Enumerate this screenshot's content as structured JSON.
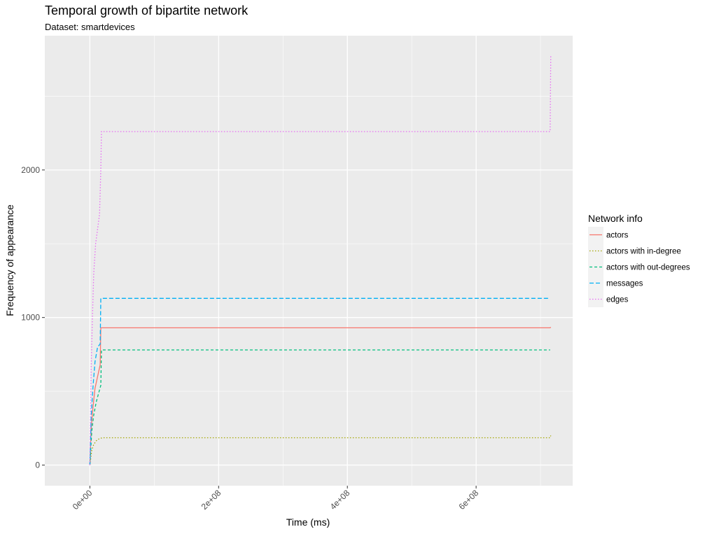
{
  "chart_data": {
    "type": "line",
    "title": "Temporal growth of bipartite network",
    "subtitle": "Dataset: smartdevices",
    "xlabel": "Time (ms)",
    "ylabel": "Frequency of appearance",
    "xlim": [
      -70000000,
      750000000
    ],
    "ylim": [
      -140,
      2910
    ],
    "x_ticks": [
      {
        "value": 0,
        "label": "0e+00"
      },
      {
        "value": 200000000,
        "label": "2e+08"
      },
      {
        "value": 400000000,
        "label": "4e+08"
      },
      {
        "value": 600000000,
        "label": "6e+08"
      }
    ],
    "y_ticks": [
      {
        "value": 0,
        "label": "0"
      },
      {
        "value": 1000,
        "label": "1000"
      },
      {
        "value": 2000,
        "label": "2000"
      }
    ],
    "grid": true,
    "legend": {
      "title": "Network info",
      "placement": "right"
    },
    "series": [
      {
        "name": "actors",
        "color": "#F8766D",
        "dash": "solid",
        "points": [
          [
            0,
            0
          ],
          [
            2000000,
            250
          ],
          [
            5000000,
            400
          ],
          [
            8000000,
            520
          ],
          [
            12000000,
            600
          ],
          [
            16000000,
            680
          ],
          [
            17000000,
            930
          ],
          [
            715000000,
            930
          ],
          [
            716000000,
            935
          ]
        ]
      },
      {
        "name": "actors with in-degree",
        "color": "#A3A500",
        "dash": "dotted",
        "points": [
          [
            0,
            0
          ],
          [
            3000000,
            100
          ],
          [
            6000000,
            140
          ],
          [
            10000000,
            165
          ],
          [
            15000000,
            180
          ],
          [
            20000000,
            185
          ],
          [
            715000000,
            185
          ],
          [
            716000000,
            200
          ]
        ]
      },
      {
        "name": "actors with out-degrees",
        "color": "#00BF7D",
        "dash": "dashed",
        "points": [
          [
            0,
            0
          ],
          [
            3000000,
            230
          ],
          [
            6000000,
            340
          ],
          [
            10000000,
            430
          ],
          [
            15000000,
            510
          ],
          [
            17000000,
            540
          ],
          [
            18000000,
            780
          ],
          [
            715000000,
            780
          ]
        ]
      },
      {
        "name": "messages",
        "color": "#00B0F6",
        "dash": "longdash",
        "points": [
          [
            0,
            0
          ],
          [
            2000000,
            330
          ],
          [
            5000000,
            540
          ],
          [
            8000000,
            700
          ],
          [
            12000000,
            800
          ],
          [
            16000000,
            820
          ],
          [
            17000000,
            1130
          ],
          [
            715000000,
            1130
          ]
        ]
      },
      {
        "name": "edges",
        "color": "#E76BF3",
        "dash": "dotted",
        "points": [
          [
            0,
            0
          ],
          [
            2000000,
            650
          ],
          [
            4000000,
            1000
          ],
          [
            6000000,
            1300
          ],
          [
            9000000,
            1500
          ],
          [
            12000000,
            1600
          ],
          [
            15000000,
            1700
          ],
          [
            17000000,
            2000
          ],
          [
            18000000,
            2260
          ],
          [
            715000000,
            2260
          ],
          [
            716000000,
            2770
          ]
        ]
      }
    ]
  }
}
